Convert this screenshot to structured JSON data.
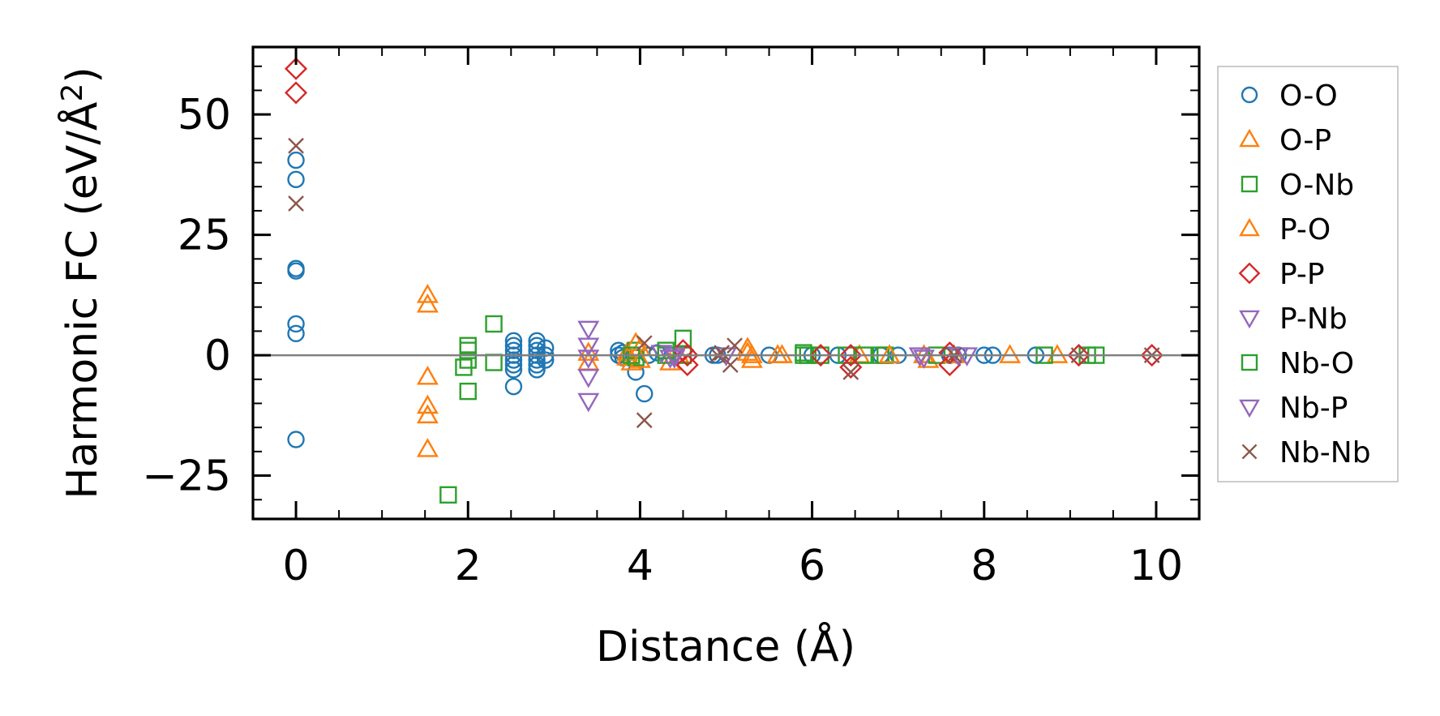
{
  "chart_data": {
    "type": "scatter",
    "title": "",
    "xlabel": "Distance (Å)",
    "ylabel": "Harmonic FC (eV/Å²)",
    "ylabel_main": "Harmonic FC (eV/Å",
    "ylabel_sup": "2",
    "ylabel_close": ")",
    "xlim": [
      -0.5,
      10.5
    ],
    "ylim": [
      -34,
      64
    ],
    "xticks": [
      0,
      2,
      4,
      6,
      8,
      10
    ],
    "yticks": [
      -25,
      0,
      25,
      50
    ],
    "xtick_labels": [
      "0",
      "2",
      "4",
      "6",
      "8",
      "10"
    ],
    "ytick_labels": [
      "−25",
      "0",
      "25",
      "50"
    ],
    "zero_line": true,
    "legend_position": "outside-right",
    "series": [
      {
        "name": "O-O",
        "marker": "circle",
        "color": "#1f77b4",
        "points": [
          [
            0,
            40.5
          ],
          [
            0,
            36.5
          ],
          [
            0,
            18
          ],
          [
            0,
            17.5
          ],
          [
            0,
            6.5
          ],
          [
            0,
            4.5
          ],
          [
            0,
            -17.5
          ],
          [
            2.53,
            3
          ],
          [
            2.53,
            2
          ],
          [
            2.53,
            1
          ],
          [
            2.53,
            0
          ],
          [
            2.53,
            -1
          ],
          [
            2.53,
            -2
          ],
          [
            2.53,
            -3
          ],
          [
            2.53,
            -6.5
          ],
          [
            2.8,
            3
          ],
          [
            2.8,
            2
          ],
          [
            2.8,
            1
          ],
          [
            2.8,
            0
          ],
          [
            2.8,
            -1
          ],
          [
            2.8,
            -2
          ],
          [
            2.8,
            -3
          ],
          [
            2.9,
            1.5
          ],
          [
            2.9,
            0
          ],
          [
            2.9,
            -1
          ],
          [
            3.75,
            1
          ],
          [
            3.75,
            0
          ],
          [
            3.8,
            0.5
          ],
          [
            3.8,
            -0.5
          ],
          [
            3.95,
            -3.5
          ],
          [
            4.05,
            -8
          ],
          [
            4.1,
            0
          ],
          [
            4.2,
            0.5
          ],
          [
            4.85,
            0
          ],
          [
            4.9,
            0
          ],
          [
            5.5,
            0
          ],
          [
            6.0,
            0
          ],
          [
            6.3,
            0
          ],
          [
            6.8,
            0
          ],
          [
            7.0,
            0
          ],
          [
            7.6,
            0
          ],
          [
            7.7,
            0
          ],
          [
            8.0,
            0
          ],
          [
            8.1,
            0
          ],
          [
            8.6,
            0
          ]
        ]
      },
      {
        "name": "O-P",
        "marker": "triangle-up",
        "color": "#ff7f0e",
        "points": [
          [
            1.53,
            12.5
          ],
          [
            1.53,
            10.5
          ],
          [
            1.53,
            -4.5
          ],
          [
            1.53,
            -10.5
          ],
          [
            1.53,
            -12.5
          ],
          [
            1.53,
            -19.5
          ],
          [
            3.4,
            0.5
          ],
          [
            3.4,
            -1.5
          ],
          [
            3.85,
            0.5
          ],
          [
            3.85,
            -0.5
          ],
          [
            3.9,
            -1.5
          ],
          [
            4.35,
            -1.5
          ],
          [
            4.45,
            0
          ],
          [
            5.25,
            1.5
          ],
          [
            5.3,
            0
          ],
          [
            5.3,
            -1
          ],
          [
            5.6,
            0
          ],
          [
            6.55,
            0
          ],
          [
            7.3,
            0
          ],
          [
            7.35,
            -1
          ],
          [
            8.3,
            0
          ],
          [
            8.85,
            0
          ]
        ]
      },
      {
        "name": "O-Nb",
        "marker": "square",
        "color": "#2ca02c",
        "points": [
          [
            1.77,
            -29
          ],
          [
            1.95,
            -2.5
          ],
          [
            2.0,
            2
          ],
          [
            2.0,
            1
          ],
          [
            2.0,
            -1
          ],
          [
            2.0,
            -7.5
          ],
          [
            2.3,
            6.5
          ],
          [
            2.3,
            -1.5
          ],
          [
            3.95,
            1
          ],
          [
            3.95,
            -0.5
          ],
          [
            4.3,
            0
          ],
          [
            4.5,
            3.5
          ],
          [
            4.5,
            0
          ],
          [
            5.9,
            0.5
          ],
          [
            5.95,
            0
          ],
          [
            6.1,
            0
          ],
          [
            6.4,
            0
          ],
          [
            6.6,
            0
          ],
          [
            6.8,
            0
          ],
          [
            6.85,
            0
          ],
          [
            7.45,
            0
          ],
          [
            8.7,
            0
          ],
          [
            9.2,
            0
          ],
          [
            9.3,
            0
          ]
        ]
      },
      {
        "name": "P-O",
        "marker": "triangle-up",
        "color": "#ff7f0e",
        "points": [
          [
            3.95,
            2.5
          ],
          [
            4.0,
            1.5
          ],
          [
            4.0,
            -1
          ],
          [
            5.25,
            0.5
          ],
          [
            5.65,
            0
          ],
          [
            6.9,
            0
          ],
          [
            7.65,
            0
          ]
        ]
      },
      {
        "name": "P-P",
        "marker": "diamond",
        "color": "#d62728",
        "points": [
          [
            0,
            59.5
          ],
          [
            0,
            54.5
          ],
          [
            4.5,
            1
          ],
          [
            4.55,
            0
          ],
          [
            4.55,
            -2
          ],
          [
            6.1,
            0
          ],
          [
            6.45,
            0
          ],
          [
            6.45,
            -2.5
          ],
          [
            7.6,
            0.5
          ],
          [
            7.6,
            -2
          ],
          [
            9.1,
            0
          ],
          [
            9.95,
            0
          ]
        ]
      },
      {
        "name": "P-Nb",
        "marker": "triangle-down",
        "color": "#9467bd",
        "points": [
          [
            3.4,
            5.5
          ],
          [
            3.4,
            2
          ],
          [
            3.4,
            -0.5
          ],
          [
            3.4,
            -4.5
          ],
          [
            3.4,
            -9.5
          ],
          [
            4.25,
            0.5
          ],
          [
            4.35,
            -0.5
          ],
          [
            4.4,
            0
          ],
          [
            5.0,
            0
          ],
          [
            7.25,
            0
          ],
          [
            7.3,
            -0.5
          ],
          [
            7.8,
            0
          ]
        ]
      },
      {
        "name": "Nb-O",
        "marker": "square",
        "color": "#2ca02c",
        "points": [
          [
            3.9,
            0
          ],
          [
            4.3,
            1
          ],
          [
            5.9,
            0
          ]
        ]
      },
      {
        "name": "Nb-P",
        "marker": "triangle-down",
        "color": "#9467bd",
        "points": [
          [
            4.4,
            -0.5
          ],
          [
            7.7,
            0
          ]
        ]
      },
      {
        "name": "Nb-Nb",
        "marker": "x",
        "color": "#8c564b",
        "points": [
          [
            0,
            43.5
          ],
          [
            0,
            31.5
          ],
          [
            4.05,
            2.5
          ],
          [
            4.05,
            -13.5
          ],
          [
            4.9,
            0
          ],
          [
            4.95,
            0.5
          ],
          [
            5.05,
            -2
          ],
          [
            5.1,
            2
          ],
          [
            6.45,
            -3.5
          ],
          [
            7.65,
            0
          ],
          [
            9.1,
            0
          ],
          [
            9.95,
            0
          ]
        ]
      }
    ]
  }
}
